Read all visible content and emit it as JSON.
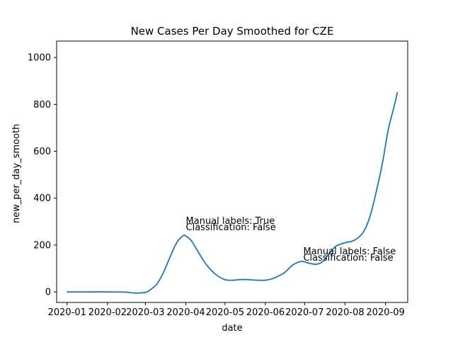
{
  "chart_data": {
    "type": "line",
    "title": "New Cases Per Day Smoothed for CZE",
    "xlabel": "date",
    "ylabel": "new_per_day_smooth",
    "xlim": [
      "2019-12-24",
      "2020-09-18"
    ],
    "ylim": [
      -45,
      1070
    ],
    "x_ticks": [
      "2020-01-01",
      "2020-02-01",
      "2020-03-01",
      "2020-04-01",
      "2020-05-01",
      "2020-06-01",
      "2020-07-01",
      "2020-08-01",
      "2020-09-01"
    ],
    "x_tick_labels": [
      "2020-01",
      "2020-02",
      "2020-03",
      "2020-04",
      "2020-05",
      "2020-06",
      "2020-07",
      "2020-08",
      "2020-09"
    ],
    "y_ticks": [
      0,
      200,
      400,
      600,
      800,
      1000
    ],
    "y_tick_labels": [
      "0",
      "200",
      "400",
      "600",
      "800",
      "1000"
    ],
    "line_color": "#1f77b4",
    "series": [
      {
        "x": [
          "2020-01-01",
          "2020-01-15",
          "2020-02-01",
          "2020-02-15",
          "2020-02-22",
          "2020-03-01",
          "2020-03-05",
          "2020-03-10",
          "2020-03-15",
          "2020-03-20",
          "2020-03-25",
          "2020-03-30",
          "2020-04-01",
          "2020-04-05",
          "2020-04-10",
          "2020-04-15",
          "2020-04-20",
          "2020-04-25",
          "2020-05-01",
          "2020-05-07",
          "2020-05-15",
          "2020-05-25",
          "2020-06-01",
          "2020-06-07",
          "2020-06-15",
          "2020-06-22",
          "2020-06-28",
          "2020-07-01",
          "2020-07-05",
          "2020-07-10",
          "2020-07-15",
          "2020-07-20",
          "2020-07-25",
          "2020-08-01",
          "2020-08-08",
          "2020-08-15",
          "2020-08-20",
          "2020-08-25",
          "2020-08-30",
          "2020-09-03",
          "2020-09-08",
          "2020-09-10"
        ],
        "y": [
          0,
          0,
          0,
          -1,
          -5,
          -2,
          10,
          35,
          85,
          150,
          210,
          240,
          238,
          220,
          175,
          130,
          95,
          70,
          52,
          50,
          53,
          50,
          50,
          58,
          80,
          115,
          130,
          128,
          122,
          118,
          130,
          165,
          195,
          210,
          220,
          255,
          320,
          430,
          560,
          690,
          800,
          850
        ]
      }
    ],
    "annotations": [
      {
        "x": "2020-04-01",
        "y": 290,
        "line1": "Manual labels: True",
        "line2": "Classification: False"
      },
      {
        "x": "2020-06-30",
        "y": 160,
        "line1": "Manual labels: False",
        "line2": "Classification: False"
      }
    ],
    "grid": false,
    "legend": "none"
  }
}
